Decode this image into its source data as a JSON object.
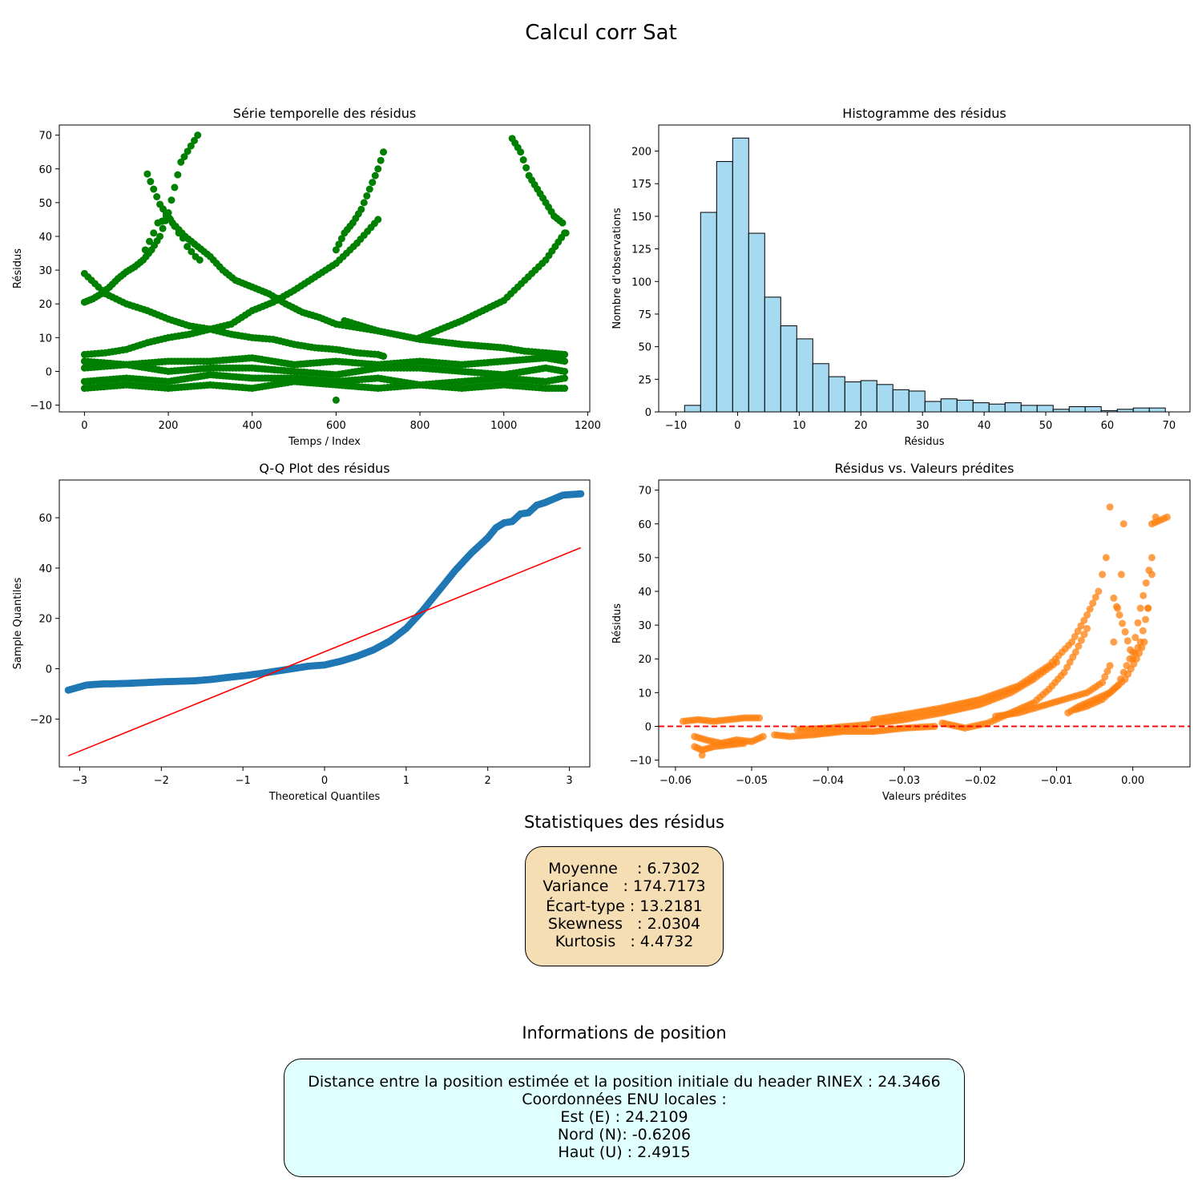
{
  "figure": {
    "suptitle": "Calcul corr Sat"
  },
  "chart_data": [
    {
      "type": "scatter",
      "title": "Série temporelle des résidus",
      "xlabel": "Temps / Index",
      "ylabel": "Résidus",
      "xlim": [
        -60,
        1205
      ],
      "ylim": [
        -12,
        73
      ],
      "xticks": [
        0,
        200,
        400,
        600,
        800,
        1000,
        1200
      ],
      "yticks": [
        -10,
        0,
        10,
        20,
        30,
        40,
        50,
        60,
        70
      ],
      "color": "#008000",
      "series": [
        {
          "x": [
            145,
            155,
            165,
            175,
            185,
            195,
            205,
            215,
            225,
            235,
            245,
            255,
            265,
            275
          ],
          "y": [
            36,
            38.5,
            41,
            44,
            44.5,
            46,
            45,
            43,
            41,
            39.5,
            37,
            35.5,
            34,
            33
          ]
        },
        {
          "x": [
            0,
            20,
            40,
            60,
            80,
            100,
            120,
            140,
            160,
            180,
            200,
            230,
            270
          ],
          "y": [
            20.5,
            21.5,
            23,
            25,
            27.5,
            29.5,
            31,
            33,
            36,
            40,
            47,
            62,
            70
          ]
        },
        {
          "x": [
            0,
            50,
            100,
            150,
            200,
            250,
            300,
            350,
            400,
            450,
            500,
            550,
            600,
            650,
            700,
            713
          ],
          "y": [
            29,
            23,
            20,
            18,
            15.5,
            13.5,
            12.5,
            11,
            10,
            9.5,
            8,
            7,
            6.5,
            5.5,
            5,
            4.5
          ]
        },
        {
          "x": [
            150,
            180,
            210,
            240,
            270,
            300,
            330,
            360,
            400,
            440,
            480,
            520,
            560,
            600,
            650,
            700
          ],
          "y": [
            58.5,
            49.5,
            44,
            40,
            37,
            34,
            30,
            27,
            25,
            23,
            20,
            17.5,
            16,
            14,
            13,
            12
          ]
        },
        {
          "x": [
            600,
            620,
            640,
            660,
            680,
            700,
            713
          ],
          "y": [
            36,
            41,
            44,
            48,
            54,
            60,
            65
          ]
        },
        {
          "x": [
            0,
            50,
            100,
            150,
            200,
            250,
            300,
            350,
            400,
            450,
            500,
            550,
            600,
            650,
            700
          ],
          "y": [
            5,
            5.5,
            6.5,
            8.5,
            10,
            11,
            12.5,
            14,
            18,
            20.5,
            24,
            28,
            32,
            38,
            45
          ]
        },
        {
          "x": [
            620,
            700,
            800,
            900,
            1000,
            1050,
            1100,
            1145
          ],
          "y": [
            15,
            12,
            9.5,
            8,
            7,
            6,
            5.5,
            5
          ]
        },
        {
          "x": [
            800,
            850,
            900,
            950,
            1000,
            1050,
            1100,
            1145
          ],
          "y": [
            10,
            12.5,
            15,
            18,
            21,
            27,
            33,
            41
          ]
        },
        {
          "x": [
            1020,
            1040,
            1060,
            1080,
            1100,
            1120,
            1140,
            1148
          ],
          "y": [
            69,
            65,
            58,
            54,
            50,
            46,
            44,
            41
          ]
        },
        {
          "x": [
            0,
            100,
            200,
            300,
            400,
            500,
            600,
            700,
            800,
            900,
            1000,
            1100,
            1145
          ],
          "y": [
            1,
            2,
            0,
            1,
            1,
            0,
            -1,
            1,
            1,
            0,
            -1,
            1,
            0
          ]
        },
        {
          "x": [
            0,
            100,
            200,
            300,
            400,
            500,
            600,
            700,
            800,
            900,
            1000,
            1100,
            1145
          ],
          "y": [
            -5,
            -4,
            -5,
            -4,
            -5,
            -3,
            -4,
            -5,
            -4,
            -5,
            -4,
            -5,
            -5
          ]
        },
        {
          "x": [
            0,
            100,
            200,
            300,
            400,
            500,
            600,
            700,
            800,
            900,
            1000,
            1100,
            1145
          ],
          "y": [
            3,
            2,
            3,
            3,
            4,
            2,
            3,
            2,
            3,
            2,
            3,
            4,
            3
          ]
        },
        {
          "x": [
            0,
            100,
            200,
            300,
            400,
            500,
            600,
            700,
            800,
            900,
            1000,
            1100,
            1145
          ],
          "y": [
            -3,
            -2,
            -3,
            -1,
            -2,
            -2,
            -3,
            -2,
            -4,
            -3,
            -2,
            -3,
            -2
          ]
        },
        {
          "x": [
            600
          ],
          "y": [
            -8.5
          ]
        }
      ]
    },
    {
      "type": "bar",
      "title": "Histogramme des résidus",
      "xlabel": "Résidus",
      "ylabel": "Nombre d'observations",
      "xlim": [
        -12.8,
        73.4
      ],
      "ylim": [
        0,
        220
      ],
      "xticks": [
        -10,
        0,
        10,
        20,
        30,
        40,
        50,
        60,
        70
      ],
      "yticks": [
        0,
        25,
        50,
        75,
        100,
        125,
        150,
        175,
        200
      ],
      "color": "#87ceeb",
      "edgecolor": "#000000",
      "bin_start": -8.6,
      "bin_width": 2.6,
      "values": [
        5,
        153,
        192,
        210,
        137,
        88,
        66,
        56,
        37,
        27,
        23,
        24,
        21,
        17,
        16,
        8,
        10,
        9,
        7,
        6,
        7,
        5,
        5,
        2,
        4,
        4,
        1,
        2,
        3,
        3
      ]
    },
    {
      "type": "scatter",
      "title": "Q-Q Plot des résidus",
      "xlabel": "Theoretical Quantiles",
      "ylabel": "Sample Quantiles",
      "xlim": [
        -3.25,
        3.25
      ],
      "ylim": [
        -39,
        75
      ],
      "xticks": [
        -3,
        -2,
        -1,
        0,
        1,
        2,
        3
      ],
      "yticks": [
        -20,
        0,
        20,
        40,
        60
      ],
      "color": "#1f77b4",
      "points": {
        "x": [
          -3.14,
          -2.92,
          -2.8,
          -2.7,
          -2.6,
          -2.4,
          -2.2,
          -2.0,
          -1.8,
          -1.6,
          -1.4,
          -1.2,
          -1.0,
          -0.8,
          -0.6,
          -0.4,
          -0.2,
          0.0,
          0.2,
          0.4,
          0.6,
          0.8,
          1.0,
          1.2,
          1.4,
          1.6,
          1.8,
          2.0,
          2.1,
          2.2,
          2.3,
          2.4,
          2.5,
          2.6,
          2.7,
          2.92,
          3.14
        ],
        "y": [
          -8.5,
          -6.5,
          -6.2,
          -6,
          -6,
          -5.8,
          -5.5,
          -5.2,
          -5,
          -4.8,
          -4.3,
          -3.5,
          -2.8,
          -2,
          -1,
          0,
          1,
          1.5,
          3,
          5,
          7.5,
          11,
          16,
          23,
          31,
          39,
          46,
          52,
          56,
          58,
          58.5,
          61.5,
          62,
          65,
          66,
          69,
          69.5
        ]
      },
      "fit_line": {
        "x": [
          -3.14,
          3.14
        ],
        "y": [
          -34.6,
          48.1
        ],
        "color": "#ff0000"
      }
    },
    {
      "type": "scatter",
      "title": "Résidus vs. Valeurs prédites",
      "xlabel": "Valeurs prédites",
      "ylabel": "Résidus",
      "xlim": [
        -0.0622,
        0.0075
      ],
      "ylim": [
        -12,
        73
      ],
      "xticks": [
        -0.06,
        -0.05,
        -0.04,
        -0.03,
        -0.02,
        -0.01,
        0.0
      ],
      "yticks": [
        -10,
        0,
        10,
        20,
        30,
        40,
        50,
        60,
        70
      ],
      "color": "#ff7f0e",
      "hline": {
        "y": 0,
        "color": "#ff0000",
        "style": "dashed"
      },
      "series": [
        {
          "x": [
            -0.059,
            -0.057,
            -0.055,
            -0.053,
            -0.051,
            -0.049
          ],
          "y": [
            1.5,
            2,
            1.5,
            2,
            2.5,
            2.5
          ]
        },
        {
          "x": [
            -0.0575,
            -0.056,
            -0.054,
            -0.052,
            -0.05,
            -0.0485
          ],
          "y": [
            -3,
            -4,
            -5,
            -4,
            -4.5,
            -3
          ]
        },
        {
          "x": [
            -0.0575,
            -0.0565,
            -0.055,
            -0.053,
            -0.051
          ],
          "y": [
            -6,
            -7,
            -6,
            -5.5,
            -5
          ]
        },
        {
          "x": [
            -0.0565
          ],
          "y": [
            -8.5
          ]
        },
        {
          "x": [
            -0.047,
            -0.045,
            -0.042,
            -0.038,
            -0.034,
            -0.03,
            -0.026
          ],
          "y": [
            -2.5,
            -3,
            -2.5,
            -1.5,
            -1.5,
            -0.5,
            0
          ]
        },
        {
          "x": [
            -0.044,
            -0.04,
            -0.035,
            -0.03,
            -0.025,
            -0.02,
            -0.016,
            -0.013,
            -0.01
          ],
          "y": [
            -1,
            -0.5,
            0.5,
            2,
            4,
            6.5,
            10,
            14,
            19
          ]
        },
        {
          "x": [
            -0.034,
            -0.03,
            -0.025,
            -0.02,
            -0.015,
            -0.011,
            -0.008,
            -0.006,
            -0.0045,
            -0.0035,
            -0.003
          ],
          "y": [
            2,
            3.5,
            5.5,
            8,
            12,
            18,
            25,
            33,
            40,
            50,
            65
          ]
        },
        {
          "x": [
            -0.025,
            -0.022,
            -0.019,
            -0.016,
            -0.013,
            -0.011,
            -0.009,
            -0.0075,
            -0.006
          ],
          "y": [
            1,
            -0.5,
            1,
            4,
            7,
            11,
            16,
            22,
            29
          ]
        },
        {
          "x": [
            -0.018,
            -0.015,
            -0.012,
            -0.009,
            -0.006,
            -0.004,
            -0.003,
            -0.0025,
            -0.002,
            -0.0015,
            -0.0012
          ],
          "y": [
            3,
            4,
            6,
            8,
            10,
            13,
            18,
            25,
            35,
            45,
            60
          ]
        },
        {
          "x": [
            -0.0085,
            -0.007,
            -0.005,
            -0.003,
            -0.001,
            0.0005,
            0.0015,
            0.002,
            0.0025,
            0.003
          ],
          "y": [
            4,
            6,
            8,
            10,
            14,
            20,
            25,
            35,
            45,
            62
          ]
        },
        {
          "x": [
            -0.0075,
            -0.006,
            -0.004,
            -0.002,
            0.0,
            0.001,
            0.0025
          ],
          "y": [
            5,
            6,
            8,
            12,
            22,
            35,
            50
          ]
        },
        {
          "x": [
            -0.0025,
            -0.001,
            0.0,
            0.001,
            0.002,
            0.0025,
            0.0045
          ],
          "y": [
            38,
            28,
            20,
            25,
            35,
            60,
            62
          ]
        }
      ]
    }
  ],
  "stats": {
    "title": "Statistiques des résidus",
    "lines": [
      "Moyenne    : 6.7302",
      "Variance   : 174.7173",
      "Écart-type : 13.2181",
      "Skewness   : 2.0304",
      "Kurtosis   : 4.4732"
    ]
  },
  "position": {
    "title": "Informations de position",
    "lines": [
      "Distance entre la position estimée et la position initiale du header RINEX : 24.3466",
      "Coordonnées ENU locales :",
      "Est (E) : 24.2109",
      "Nord (N): -0.6206",
      "Haut (U) : 2.4915"
    ]
  }
}
